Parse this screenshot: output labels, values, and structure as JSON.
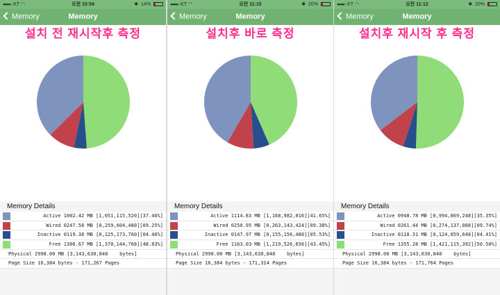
{
  "colors": {
    "active": "#7f93bf",
    "wired": "#c2424c",
    "inactive": "#264f8c",
    "free": "#8fdc78"
  },
  "panels": [
    {
      "status": {
        "carrier": "KT",
        "time": "오전 10:54",
        "battery": "14%",
        "battery_fraction": 0.14
      },
      "nav": {
        "back_label": "Memory",
        "title": "Memory"
      },
      "caption": "설치 전 재시작후 측정",
      "details_title": "Memory Details",
      "rows": [
        {
          "key": "active",
          "text": "Active 1002.42 MB [1,051,115,520][37.46%]",
          "percent": 37.46
        },
        {
          "key": "wired",
          "text": "Wired 0247.58 MB [0,259,604,480][09.25%]",
          "percent": 9.25
        },
        {
          "key": "inactive",
          "text": "Inactive 0119.38 MB [0,125,173,760][04.46%]",
          "percent": 4.46
        },
        {
          "key": "free",
          "text": "Free 1306.67 MB [1,370,144,768][48.83%]",
          "percent": 48.83
        }
      ],
      "physical": "Physical 2998.00 MB [3,143,630,848    bytes]",
      "page_size": "Page Size 16,384 bytes - 171,267 Pages"
    },
    {
      "status": {
        "carrier": "KT",
        "time": "오전 11:10",
        "battery": "20%",
        "battery_fraction": 0.2
      },
      "nav": {
        "back_label": "Memory",
        "title": "Memory"
      },
      "caption": "설치후 바로 측정",
      "details_title": "Memory Details",
      "rows": [
        {
          "key": "active",
          "text": "Active 1114.83 MB [1,168,982,016][41.65%]",
          "percent": 41.65
        },
        {
          "key": "wired",
          "text": "Wired 0250.95 MB [0,263,143,424][09.38%]",
          "percent": 9.38
        },
        {
          "key": "inactive",
          "text": "Inactive 0147.97 MB [0,155,156,480][05.53%]",
          "percent": 5.53
        },
        {
          "key": "free",
          "text": "Free 1163.03 MB [1,219,526,656][43.45%]",
          "percent": 43.45
        }
      ],
      "physical": "Physical 2998.00 MB [3,143,630,848    bytes]",
      "page_size": "Page Size 16,384 bytes - 171,314 Pages"
    },
    {
      "status": {
        "carrier": "KT",
        "time": "오전 11:12",
        "battery": "20%",
        "battery_fraction": 0.2
      },
      "nav": {
        "back_label": "Memory",
        "title": "Memory"
      },
      "caption": "설치후 재시작 후 측정",
      "details_title": "Memory Details",
      "rows": [
        {
          "key": "active",
          "text": "Active 0948.78 MB [0,994,869,248][35.35%]",
          "percent": 35.35
        },
        {
          "key": "wired",
          "text": "Wired 0261.44 MB [0,274,137,088][09.74%]",
          "percent": 9.74
        },
        {
          "key": "inactive",
          "text": "Inactive 0118.31 MB [0,124,059,648][04.41%]",
          "percent": 4.41
        },
        {
          "key": "free",
          "text": "Free 1355.28 MB [1,421,115,392][50.50%]",
          "percent": 50.5
        }
      ],
      "physical": "Physical 2998.00 MB [3,143,630,848    bytes]",
      "page_size": "Page Size 16,384 bytes - 171,764 Pages"
    }
  ]
}
